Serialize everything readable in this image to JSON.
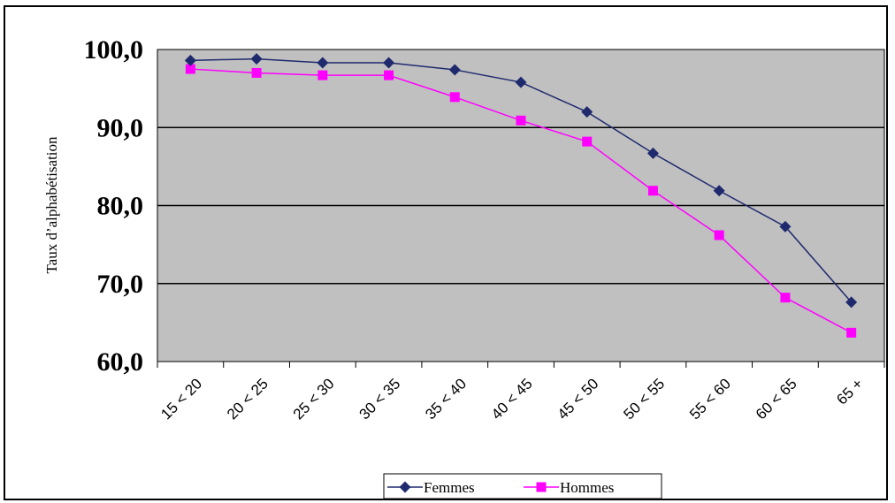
{
  "chart_data": {
    "type": "line",
    "categories": [
      "15 < 20",
      "20 < 25",
      "25 < 30",
      "30 < 35",
      "35 < 40",
      "40 < 45",
      "45 < 50",
      "50 < 55",
      "55 < 60",
      "60 < 65",
      "65 +"
    ],
    "series": [
      {
        "name": "Femmes",
        "color": "#1f2a6e",
        "marker": "diamond",
        "values": [
          98.6,
          98.8,
          98.3,
          98.3,
          97.4,
          95.8,
          92.0,
          86.7,
          81.9,
          77.3,
          67.6
        ]
      },
      {
        "name": "Hommes",
        "color": "#ff00ff",
        "marker": "square",
        "values": [
          97.5,
          97.0,
          96.7,
          96.7,
          93.9,
          90.9,
          88.2,
          81.9,
          76.2,
          68.2,
          63.7
        ]
      }
    ],
    "ylabel": "Taux d’alphabétisation",
    "yticks": [
      "100,0",
      "90,0",
      "80,0",
      "70,0",
      "60,0"
    ],
    "ylim": [
      60,
      100
    ],
    "grid": true,
    "plot_background": "#c0c0c0",
    "legend_position": "bottom"
  }
}
